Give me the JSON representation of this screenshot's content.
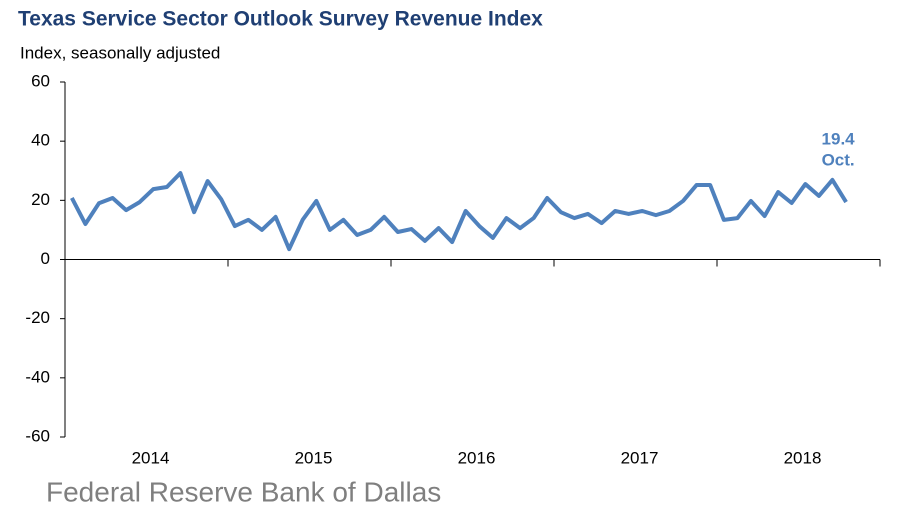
{
  "chart_data": {
    "type": "line",
    "title": "Texas Service Sector Outlook Survey Revenue Index",
    "subtitle": "Index, seasonally adjusted",
    "annotation": "Oct.",
    "source": "Federal Reserve Bank of Dallas",
    "x": [
      2014.042,
      2014.125,
      2014.208,
      2014.292,
      2014.375,
      2014.458,
      2014.542,
      2014.625,
      2014.708,
      2014.792,
      2014.875,
      2014.958,
      2015.042,
      2015.125,
      2015.208,
      2015.292,
      2015.375,
      2015.458,
      2015.542,
      2015.625,
      2015.708,
      2015.792,
      2015.875,
      2015.958,
      2016.042,
      2016.125,
      2016.208,
      2016.292,
      2016.375,
      2016.458,
      2016.542,
      2016.625,
      2016.708,
      2016.792,
      2016.875,
      2016.958,
      2017.042,
      2017.125,
      2017.208,
      2017.292,
      2017.375,
      2017.458,
      2017.542,
      2017.625,
      2017.708,
      2017.792,
      2017.875,
      2017.958,
      2018.042,
      2018.125,
      2018.208,
      2018.292,
      2018.375,
      2018.458,
      2018.542,
      2018.625,
      2018.708,
      2018.792
    ],
    "series": [
      {
        "name": "Revenue Index",
        "color": "#4f81bd",
        "values": [
          20.8,
          12,
          19,
          20.8,
          16.7,
          19.4,
          23.8,
          24.5,
          29.2,
          16,
          26.5,
          20.4,
          11.3,
          13.4,
          10,
          14.4,
          3.5,
          13.4,
          19.8,
          10,
          13.4,
          8.3,
          10,
          14.4,
          9.3,
          10.3,
          6.3,
          10.6,
          5.9,
          16.4,
          11.3,
          7.3,
          14,
          10.6,
          14,
          20.8,
          16,
          14,
          15.4,
          12.3,
          16.4,
          15.4,
          16.4,
          15,
          16.4,
          19.8,
          25.2,
          25.2,
          13.4,
          14,
          19.8,
          14.7,
          22.8,
          19.1,
          25.5,
          21.5,
          26.9,
          19.4
        ]
      }
    ],
    "xlim": [
      2014,
      2019
    ],
    "xticks": [
      {
        "value": 2014.5,
        "label": "2014"
      },
      {
        "value": 2015.5,
        "label": "2015"
      },
      {
        "value": 2016.5,
        "label": "2016"
      },
      {
        "value": 2017.5,
        "label": "2017"
      },
      {
        "value": 2018.5,
        "label": "2018"
      }
    ],
    "ylim": [
      -60,
      60
    ],
    "yticks": [
      60,
      40,
      20,
      0,
      -20,
      -40,
      -60
    ],
    "grid": false
  }
}
